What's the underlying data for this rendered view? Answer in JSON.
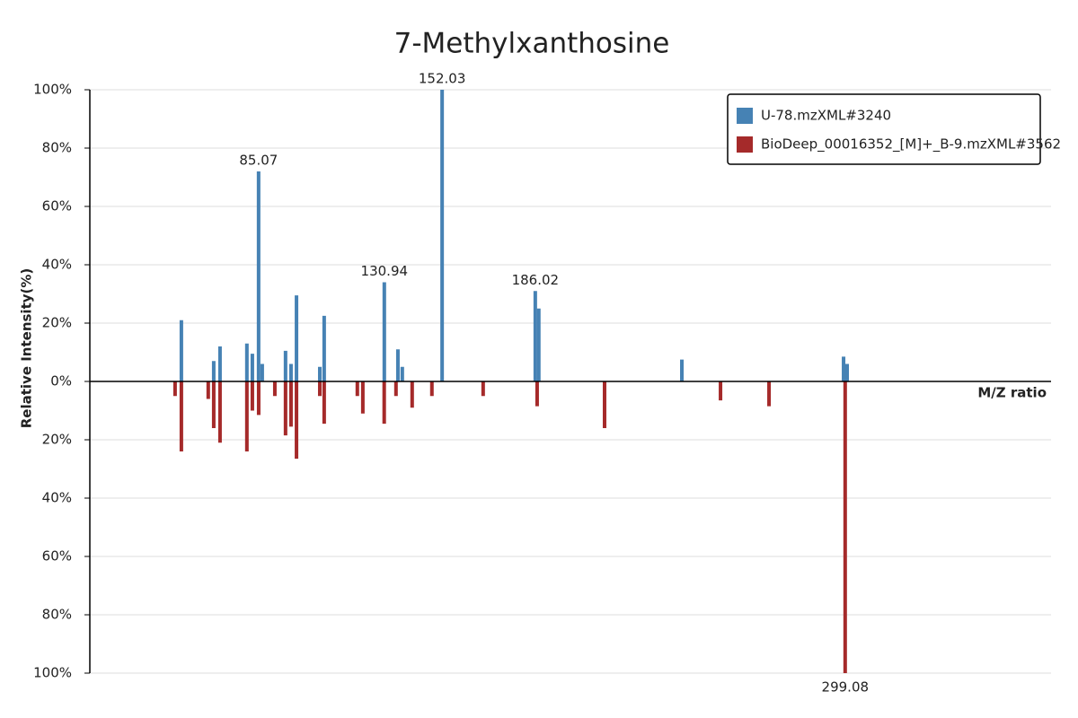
{
  "chart_data": {
    "type": "mirror-bar",
    "title": "7-Methylxanthosine",
    "xlabel": "M/Z ratio",
    "ylabel": "Relative Intensity(%)",
    "xlim": [
      23.5,
      374.2
    ],
    "ylim": [
      -100,
      100
    ],
    "yticks": [
      {
        "value": 100,
        "label": "100%"
      },
      {
        "value": 80,
        "label": "80%"
      },
      {
        "value": 60,
        "label": "60%"
      },
      {
        "value": 40,
        "label": "40%"
      },
      {
        "value": 20,
        "label": "20%"
      },
      {
        "value": 0,
        "label": "0%"
      },
      {
        "value": -20,
        "label": "20%"
      },
      {
        "value": -40,
        "label": "40%"
      },
      {
        "value": -60,
        "label": "60%"
      },
      {
        "value": -80,
        "label": "80%"
      },
      {
        "value": -100,
        "label": "100%"
      }
    ],
    "grid": true,
    "legend": "upper right",
    "series": [
      {
        "name": "U-78.mzXML#3240",
        "color": "#4682b4",
        "label_peaks": 4,
        "x": [
          56.9,
          68.7,
          71.0,
          80.8,
          82.8,
          85.07,
          86.4,
          94.9,
          96.9,
          98.9,
          107.4,
          109.0,
          130.94,
          135.9,
          137.5,
          152.03,
          186.02,
          187.3,
          239.5,
          298.5,
          299.8
        ],
        "values": [
          21,
          7,
          12,
          13,
          9.5,
          72,
          6,
          10.5,
          6,
          29.5,
          5,
          22.5,
          34,
          11,
          5,
          100,
          31,
          25,
          7.5,
          8.5,
          6
        ]
      },
      {
        "name": "BioDeep_00016352_[M]+_B-9.mzXML#3562",
        "color": "#a52a2a",
        "label_peaks": 1,
        "x": [
          54.6,
          56.9,
          66.7,
          68.7,
          71.0,
          80.8,
          82.8,
          85.1,
          91.0,
          94.9,
          96.9,
          98.9,
          107.4,
          109.0,
          121.1,
          123.1,
          130.9,
          135.2,
          141.1,
          148.3,
          167.0,
          186.7,
          211.3,
          253.6,
          271.3,
          299.08
        ],
        "values": [
          -5,
          -24,
          -6,
          -16,
          -21,
          -24,
          -10,
          -11.5,
          -5,
          -18.5,
          -15.5,
          -26.5,
          -5,
          -14.5,
          -5,
          -11,
          -14.5,
          -5,
          -9,
          -5,
          -5,
          -8.5,
          -16,
          -6.5,
          -8.5,
          -100
        ]
      }
    ]
  }
}
